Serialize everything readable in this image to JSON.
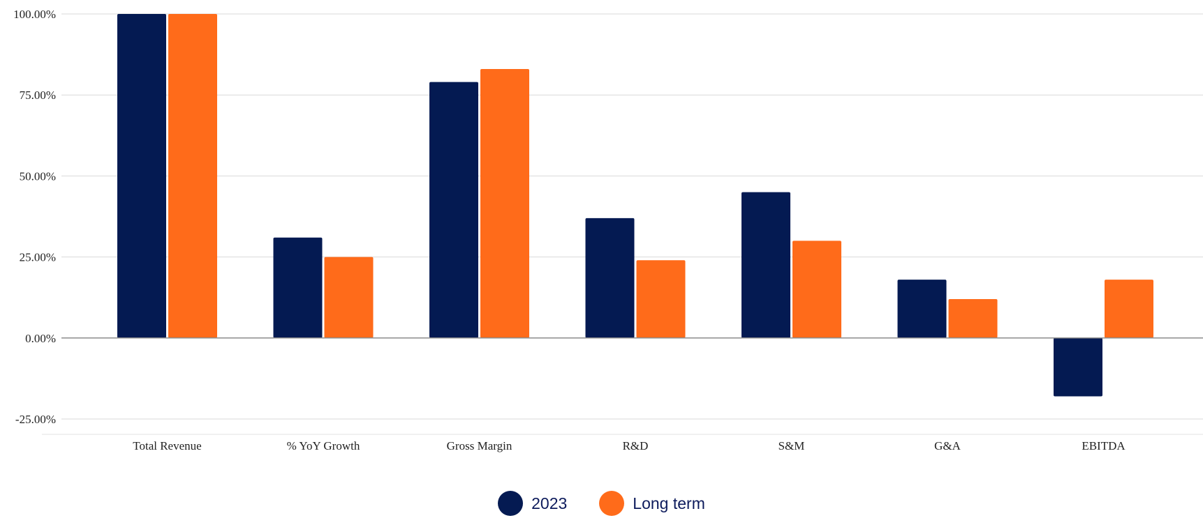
{
  "chart_data": {
    "type": "bar",
    "categories": [
      "Total Revenue",
      "% YoY Growth",
      "Gross Margin",
      "R&D",
      "S&M",
      "G&A",
      "EBITDA"
    ],
    "series": [
      {
        "name": "2023",
        "color": "#041a52",
        "values": [
          100,
          31,
          79,
          37,
          45,
          18,
          -18
        ]
      },
      {
        "name": "Long term",
        "color": "#ff6b1a",
        "values": [
          100,
          25,
          83,
          24,
          30,
          12,
          18
        ]
      }
    ],
    "y_ticks": [
      "100.00%",
      "75.00%",
      "50.00%",
      "25.00%",
      "0.00%",
      "-25.00%"
    ],
    "y_tick_values": [
      100,
      75,
      50,
      25,
      0,
      -25
    ],
    "ylim": [
      -25,
      100
    ],
    "grid": true,
    "legend_position": "bottom-center",
    "title": "",
    "xlabel": "",
    "ylabel": ""
  }
}
